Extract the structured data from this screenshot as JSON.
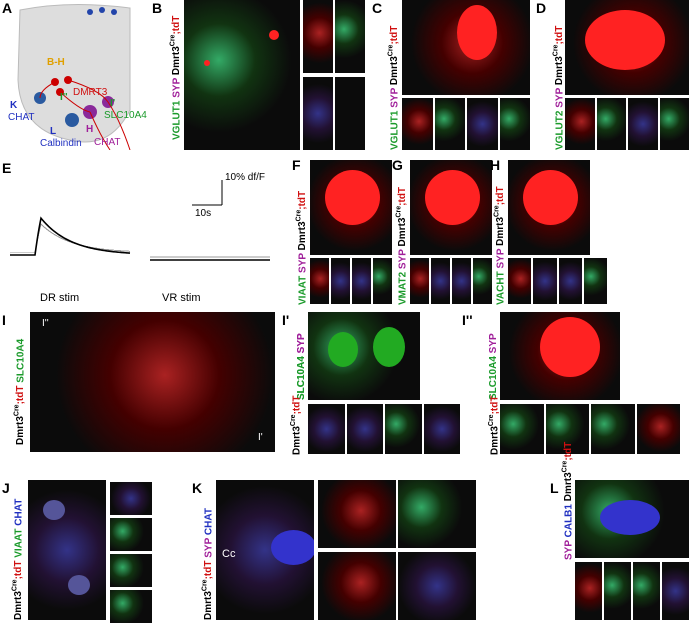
{
  "genotype": {
    "base": "Dmrt3",
    "sup": "Cre",
    "rest": ";tdT"
  },
  "panel_a": {
    "letter": "A",
    "labels": [
      "B-H",
      "DMRT3",
      "K",
      "CHAT",
      "I''",
      "I'",
      "SLC10A4",
      "L",
      "Calbindin",
      "H",
      "CHAT"
    ]
  },
  "panel_b": {
    "letter": "B",
    "stains": [
      "VGLUT1",
      "SYP"
    ]
  },
  "panel_c": {
    "letter": "C",
    "stains": [
      "VGLUT1",
      "SYP"
    ]
  },
  "panel_d": {
    "letter": "D",
    "stains": [
      "VGLUT2",
      "SYP"
    ]
  },
  "panel_e": {
    "letter": "E",
    "scale_y": "10% df/F",
    "scale_x": "10s",
    "stim_1": "DR stim",
    "stim_2": "VR stim"
  },
  "panel_f": {
    "letter": "F",
    "stains": [
      "VIAAT",
      "SYP"
    ]
  },
  "panel_g": {
    "letter": "G",
    "stains": [
      "VMAT2",
      "SYP"
    ]
  },
  "panel_h": {
    "letter": "H",
    "stains": [
      "VACHT",
      "SYP"
    ]
  },
  "panel_i": {
    "letter": "I",
    "stains": [
      "SLC10A4"
    ],
    "boxes": [
      "I''",
      "I'"
    ]
  },
  "panel_i1": {
    "letter": "I'",
    "stains": [
      "SLC10A4",
      "SYP"
    ]
  },
  "panel_i2": {
    "letter": "I''",
    "stains": [
      "SLC10A4",
      "SYP"
    ]
  },
  "panel_j": {
    "letter": "J",
    "stains": [
      "VIAAT",
      "CHAT"
    ]
  },
  "panel_k": {
    "letter": "K",
    "stains": [
      "SYP",
      "CHAT"
    ],
    "region": "Cc"
  },
  "panel_l": {
    "letter": "L",
    "stains": [
      "SYP",
      "CALB1"
    ]
  }
}
